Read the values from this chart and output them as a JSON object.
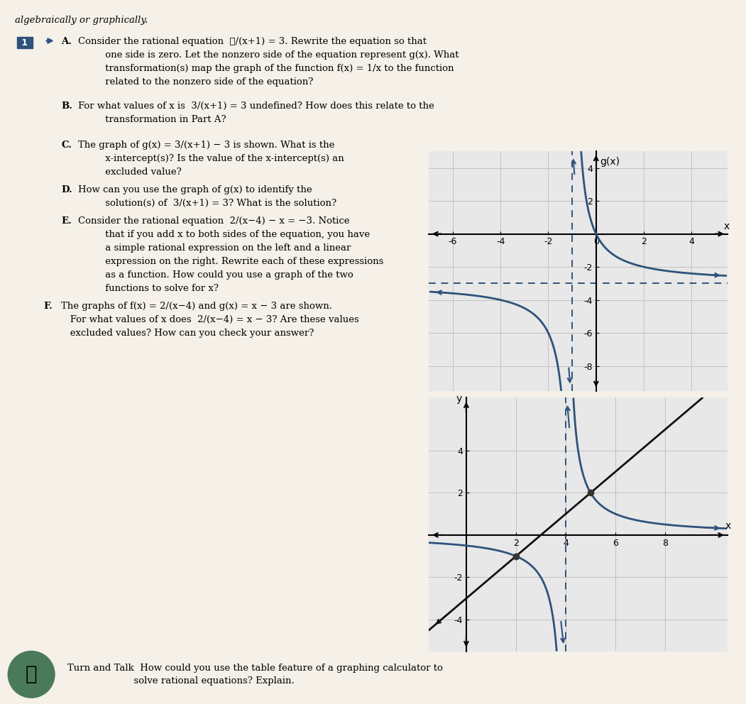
{
  "graph1": {
    "title": "g(x)",
    "xlim": [
      -7,
      5.5
    ],
    "ylim": [
      -9.5,
      5
    ],
    "xticks": [
      -6,
      -4,
      -2,
      0,
      2,
      4
    ],
    "yticks": [
      -8,
      -6,
      -4,
      -2,
      2,
      4
    ],
    "vertical_asymptote": -1,
    "horizontal_asymptote": -3,
    "curve_color": "#2e527a",
    "asymptote_color": "#2e527a",
    "curve_linewidth": 2.0,
    "asymptote_linewidth": 1.4,
    "bg_color": "#e8e8e8",
    "grid_color": "#bbbbbb"
  },
  "graph2": {
    "title_y": "y",
    "title_x": "x",
    "xlim": [
      -1.5,
      10.5
    ],
    "ylim": [
      -5.5,
      6.5
    ],
    "xticks": [
      2,
      4,
      6,
      8
    ],
    "yticks": [
      -4,
      -2,
      2,
      4
    ],
    "vertical_asymptote": 4,
    "rational_color": "#2e527a",
    "linear_color": "#111111",
    "curve_linewidth": 2.0,
    "asymptote_linewidth": 1.4,
    "intersection1": [
      2,
      -1
    ],
    "intersection2": [
      5,
      2
    ],
    "bg_color": "#e8e8e8",
    "grid_color": "#bbbbbb"
  },
  "page_bg": "#f5f0e8",
  "turn_bg": "#e8dfc8",
  "axis_color": "#000000",
  "axis_lw": 1.5
}
